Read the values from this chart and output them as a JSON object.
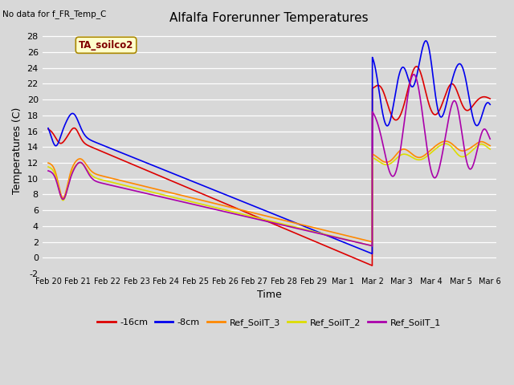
{
  "title": "Alfalfa Forerunner Temperatures",
  "no_data_text": "No data for f_FR_Temp_C",
  "annotation_text": "TA_soilco2",
  "xlabel": "Time",
  "ylabel": "Temperatures (C)",
  "ylim": [
    -2,
    29
  ],
  "yticks": [
    -2,
    0,
    2,
    4,
    6,
    8,
    10,
    12,
    14,
    16,
    18,
    20,
    22,
    24,
    26,
    28
  ],
  "bg_color": "#d8d8d8",
  "series": {
    "red": {
      "label": "-16cm",
      "color": "#dd0000"
    },
    "blue": {
      "label": "-8cm",
      "color": "#0000ee"
    },
    "orange": {
      "label": "Ref_SoilT_3",
      "color": "#ff8800"
    },
    "yellow": {
      "label": "Ref_SoilT_2",
      "color": "#dddd00"
    },
    "purple": {
      "label": "Ref_SoilT_1",
      "color": "#aa00aa"
    }
  },
  "x_labels": [
    "Feb 20",
    "Feb 21",
    "Feb 22",
    "Feb 23",
    "Feb 24",
    "Feb 25",
    "Feb 26",
    "Feb 27",
    "Feb 28",
    "Feb 29",
    "Mar 1",
    "Mar 2",
    "Mar 3",
    "Mar 4",
    "Mar 5",
    "Mar 6"
  ]
}
